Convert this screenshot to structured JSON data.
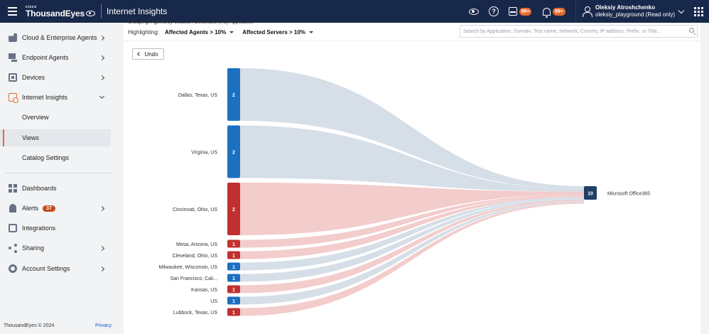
{
  "topbar": {
    "brand_small": "cisco",
    "brand": "ThousandEyes",
    "app_title": "Internet Insights",
    "inbox_badge": "99+",
    "alerts_badge": "99+",
    "user_name": "Oleksiy Atroshchenko",
    "user_account": "oleksiy_playground (Read only)"
  },
  "sidebar": {
    "items": [
      {
        "label": "Cloud & Enterprise Agents",
        "icon": "cloud-agent-icon"
      },
      {
        "label": "Endpoint Agents",
        "icon": "endpoint-icon"
      },
      {
        "label": "Devices",
        "icon": "device-icon"
      },
      {
        "label": "Internet Insights",
        "icon": "insights-icon"
      },
      {
        "label": "Overview"
      },
      {
        "label": "Views"
      },
      {
        "label": "Catalog Settings"
      },
      {
        "label": "Dashboards",
        "icon": "dashboard-icon"
      },
      {
        "label": "Alerts",
        "icon": "bell-icon",
        "badge": "37"
      },
      {
        "label": "Integrations",
        "icon": "integrations-icon"
      },
      {
        "label": "Sharing",
        "icon": "share-icon"
      },
      {
        "label": "Account Settings",
        "icon": "gear-icon"
      }
    ],
    "footer_copyright": "ThousandEyes © 2024",
    "footer_privacy": "Privacy"
  },
  "toolbar": {
    "grouping_partial": "Grouping:      Agents by Location      Destinations by Application",
    "highlight_label": "Highlighting:",
    "agents_filter": "Affected Agents > 10%",
    "servers_filter": "Affected Servers > 10%",
    "search_placeholder": "Search by Application, Domain, Test name, Network, Country, IP address, Prefix, or Title...",
    "undo_label": "Undo"
  },
  "colors": {
    "affected": "#c0302f",
    "normal": "#1c70bf",
    "target": "#1f3f66",
    "flow_affected": "#f2c9c9",
    "flow_normal": "#d4dde6"
  },
  "chart_data": {
    "type": "sankey",
    "sources": [
      {
        "label": "Dallas, Texas, US",
        "value": 2,
        "affected": false
      },
      {
        "label": "Virginia, US",
        "value": 2,
        "affected": false
      },
      {
        "label": "Cincinnati, Ohio, US",
        "value": 2,
        "affected": true
      },
      {
        "label": "Mesa, Arizona, US",
        "value": 1,
        "affected": true
      },
      {
        "label": "Cleveland, Ohio, US",
        "value": 1,
        "affected": true
      },
      {
        "label": "Milwaukee, Wisconsin, US",
        "value": 1,
        "affected": false
      },
      {
        "label": "San Francisco, Cali...",
        "value": 1,
        "affected": false
      },
      {
        "label": "Kansas, US",
        "value": 1,
        "affected": true
      },
      {
        "label": "US",
        "value": 1,
        "affected": false
      },
      {
        "label": "Lubbock, Texas, US",
        "value": 1,
        "affected": true
      }
    ],
    "target": {
      "label": "Microsoft Office365",
      "value": 10
    }
  }
}
